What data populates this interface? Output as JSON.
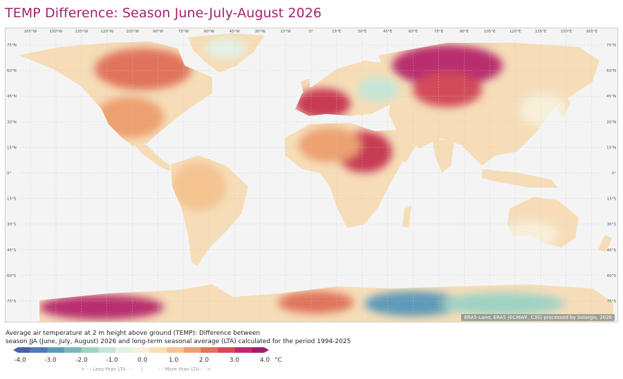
{
  "title": "TEMP Difference: Season June-July-August 2026",
  "map": {
    "lon_labels": [
      "165°W",
      "150°W",
      "135°W",
      "120°W",
      "105°W",
      "90°W",
      "75°W",
      "60°W",
      "45°W",
      "30°W",
      "15°W",
      "0°",
      "15°E",
      "30°E",
      "45°E",
      "60°E",
      "75°E",
      "90°E",
      "105°E",
      "120°E",
      "135°E",
      "150°E",
      "165°E"
    ],
    "lat_labels": [
      "75°N",
      "60°N",
      "45°N",
      "30°N",
      "15°N",
      "0°",
      "15°S",
      "30°S",
      "45°S",
      "60°S",
      "75°S"
    ],
    "credit": "ERA5-Land, ERA5 (ECMWF, C3S) processed by Solargis, 2026"
  },
  "description": {
    "line1": "Average air temperature at 2 m height above ground (TEMP): Difference between",
    "line2": "season JJA (June, July, August) 2026 and long-term seasonal average (LTA) calculated for the period 1994-2025"
  },
  "legend": {
    "ticks": [
      "-4.0",
      "-3.0",
      "-2.0",
      "-1.0",
      "0.0",
      "1.0",
      "2.0",
      "3.0",
      "4.0"
    ],
    "unit": "°C",
    "less_note": "< - - Less than LTA - -",
    "separator": "|",
    "more_note": "- - More than LTA - - >",
    "colors": [
      "#4a5fa8",
      "#4f7bb5",
      "#5d9ab8",
      "#79b8bd",
      "#9ed3c4",
      "#c5e6d6",
      "#e4f1e4",
      "#f7efd9",
      "#f8ddb7",
      "#f4c390",
      "#eda06f",
      "#e0735b",
      "#d34c58",
      "#b82d6e",
      "#9e1c6e"
    ]
  }
}
